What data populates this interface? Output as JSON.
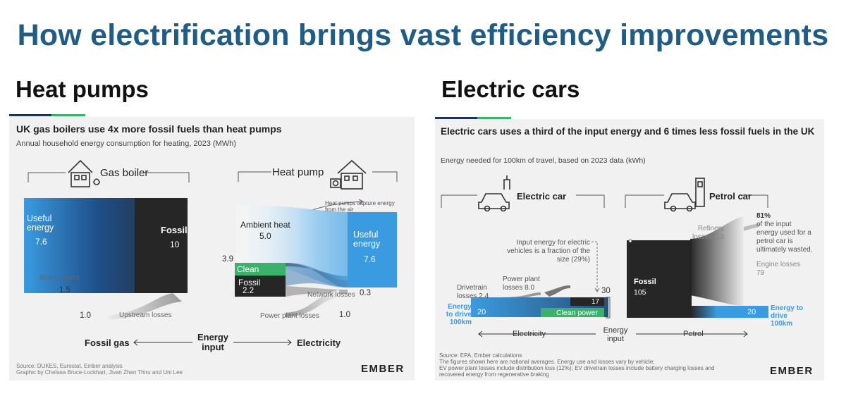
{
  "main_title": "How electrification brings vast efficiency improvements",
  "left": {
    "section_title": "Heat pumps",
    "chart_title": "UK gas boilers use 4x more fossil fuels than heat pumps",
    "chart_subtitle": "Annual household energy consumption for heating, 2023 (MWh)",
    "gas_boiler_label": "Gas boiler",
    "heat_pump_label": "Heat pump",
    "useful_label": "Useful energy",
    "useful_value": "7.6",
    "fossil_label": "Fossil",
    "fossil_value": "10",
    "boiler_losses_label": "Boiler losses",
    "boiler_losses_value": "1.5",
    "upstream_losses_value": "1.0",
    "upstream_losses_label": "Upstream losses",
    "hp_note": "Heat pumps capture energy from the air",
    "ambient_label": "Ambient heat",
    "ambient_value": "5.0",
    "hp_useful_label": "Useful energy",
    "hp_useful_value": "7.6",
    "stack_value": "3.9",
    "clean_label": "Clean",
    "hp_fossil_label": "Fossil",
    "hp_fossil_value": "2.2",
    "network_losses_label": "Network losses",
    "network_losses_value": "0.3",
    "power_plant_losses_label": "Power plant losses",
    "power_plant_losses_value": "1.0",
    "axis_left": "Fossil gas",
    "axis_center": "Energy input",
    "axis_right": "Electricity",
    "source": "Source: DUKES, Eurostat, Ember analysis",
    "credit": "Graphic by Chelsea Bruce-Lockhart, Jivan Zhen Thiru and Uni Lee",
    "logo": "EMBER"
  },
  "right": {
    "section_title": "Electric cars",
    "chart_title": "Electric cars uses a third of the input energy and 6 times less fossil fuels in the UK",
    "chart_subtitle": "Energy needed for 100km of travel, based on 2023 data (kWh)",
    "ev_label": "Electric car",
    "petrol_label": "Petrol car",
    "input_note": "Input energy for electric vehicles is a fraction of the size (29%)",
    "input_note_highlight": "29%",
    "refinery_label": "Refinery losses 6.3",
    "waste_note_highlight": "81%",
    "waste_note": "of the input energy used for a petrol car is ultimately wasted.",
    "engine_label": "Engine losses",
    "engine_value": "79",
    "drivetrain_label": "Drivetrain losses 2.4",
    "power_plant_label": "Power plant losses 8.0",
    "ev_total": "30",
    "ev_fossil_value": "17",
    "ev_useful_value": "20",
    "clean_power_label": "Clean power",
    "ev_drive_label": "Energy to drive 100km",
    "petrol_fossil_label": "Fossil",
    "petrol_fossil_value": "105",
    "petrol_useful_value": "20",
    "petrol_drive_label": "Energy to drive 100km",
    "axis_left": "Electricity",
    "axis_center": "Energy input",
    "axis_right": "Petrol",
    "source_lines": [
      "Source: EPA, Ember calculations",
      "The figures shown here are national averages. Energy use and losses vary by vehicle;",
      "EV power plant losses include distribution loss (12%); EV drivetrain losses include battery charging losses and",
      "recovered energy from regenerative braking"
    ],
    "logo": "EMBER"
  },
  "colors": {
    "title_blue": "#1f5d86",
    "useful_blue": "#3a9be0",
    "fossil_dark": "#262626",
    "clean_green": "#3bb26b",
    "accent_green": "#3bb26b",
    "accent_navy": "#1d3557"
  }
}
